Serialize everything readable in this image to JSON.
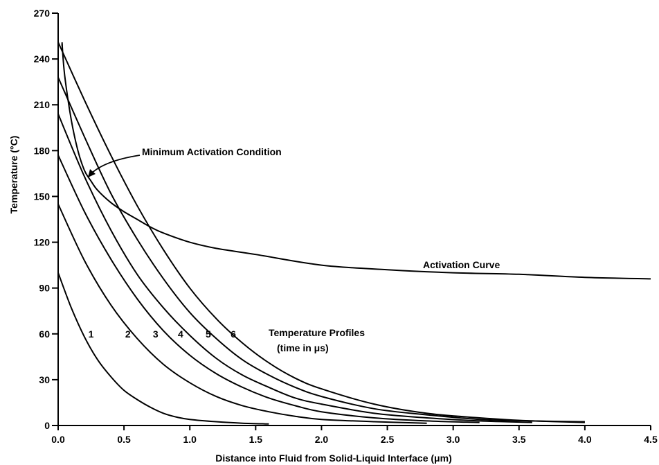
{
  "chart_data": {
    "type": "line",
    "xlabel": "Distance into Fluid from Solid-Liquid Interface (μm)",
    "ylabel": "Temperature (°C)",
    "xlim": [
      0,
      4.5
    ],
    "ylim": [
      0,
      270
    ],
    "xticks": [
      "0.0",
      "0.5",
      "1.0",
      "1.5",
      "2.0",
      "2.5",
      "3.0",
      "3.5",
      "4.0",
      "4.5"
    ],
    "yticks": [
      "0",
      "30",
      "60",
      "90",
      "120",
      "150",
      "180",
      "210",
      "240",
      "270"
    ],
    "grid": false,
    "legend": "none",
    "series": [
      {
        "name": "1",
        "x": [
          0,
          0.1,
          0.2,
          0.3,
          0.4,
          0.5,
          0.6,
          0.7,
          0.8,
          0.9,
          1.0,
          1.2,
          1.4,
          1.6
        ],
        "y": [
          100,
          77,
          58,
          43,
          32,
          23,
          17,
          12,
          8,
          5.5,
          4,
          2.5,
          1.5,
          1
        ]
      },
      {
        "name": "2",
        "x": [
          0,
          0.2,
          0.4,
          0.6,
          0.8,
          1.0,
          1.2,
          1.4,
          1.6,
          1.8,
          2.0,
          2.4,
          2.8
        ],
        "y": [
          145,
          108,
          79,
          57,
          40,
          28,
          19,
          13,
          9,
          6,
          4,
          2.5,
          1.5
        ]
      },
      {
        "name": "3",
        "x": [
          0,
          0.2,
          0.4,
          0.6,
          0.8,
          1.0,
          1.2,
          1.4,
          1.6,
          1.8,
          2.0,
          2.4,
          2.8,
          3.2
        ],
        "y": [
          177,
          140,
          109,
          83,
          62,
          46,
          34,
          25,
          18,
          13,
          9,
          5,
          3,
          2
        ]
      },
      {
        "name": "4",
        "x": [
          0,
          0.2,
          0.4,
          0.6,
          0.8,
          1.0,
          1.2,
          1.4,
          1.6,
          1.8,
          2.0,
          2.4,
          2.8,
          3.2,
          3.6
        ],
        "y": [
          204,
          163,
          128,
          99,
          77,
          59,
          44,
          33,
          25,
          18,
          14,
          8,
          5,
          3,
          2
        ]
      },
      {
        "name": "5",
        "x": [
          0,
          0.2,
          0.4,
          0.6,
          0.8,
          1.0,
          1.2,
          1.4,
          1.6,
          1.8,
          2.0,
          2.4,
          2.8,
          3.2,
          3.6,
          4.0
        ],
        "y": [
          228,
          189,
          152,
          122,
          96,
          74,
          57,
          43,
          33,
          25,
          19,
          11,
          7,
          4,
          3,
          2
        ]
      },
      {
        "name": "6",
        "x": [
          0,
          0.2,
          0.4,
          0.6,
          0.8,
          1.0,
          1.2,
          1.4,
          1.6,
          1.8,
          2.0,
          2.4,
          2.8,
          3.2,
          3.6,
          4.0
        ],
        "y": [
          251,
          213,
          177,
          144,
          115,
          90,
          70,
          54,
          41,
          31,
          24,
          14,
          8,
          5,
          3,
          2.5
        ]
      },
      {
        "name": "Activation Curve",
        "x": [
          0.03,
          0.05,
          0.1,
          0.15,
          0.2,
          0.25,
          0.3,
          0.4,
          0.5,
          0.6,
          0.7,
          0.8,
          1.0,
          1.2,
          1.5,
          2.0,
          2.5,
          3.0,
          3.5,
          4.0,
          4.5
        ],
        "y": [
          250,
          229,
          200,
          180,
          167,
          160,
          154,
          146,
          140,
          135,
          130,
          126,
          120,
          116,
          112,
          105,
          102,
          100,
          99,
          97,
          96
        ]
      }
    ],
    "annotations": {
      "min_activation": "Minimum Activation Condition",
      "activation_curve": "Activation Curve",
      "profiles_line1": "Temperature Profiles",
      "profiles_line2": "(time in μs)"
    }
  }
}
